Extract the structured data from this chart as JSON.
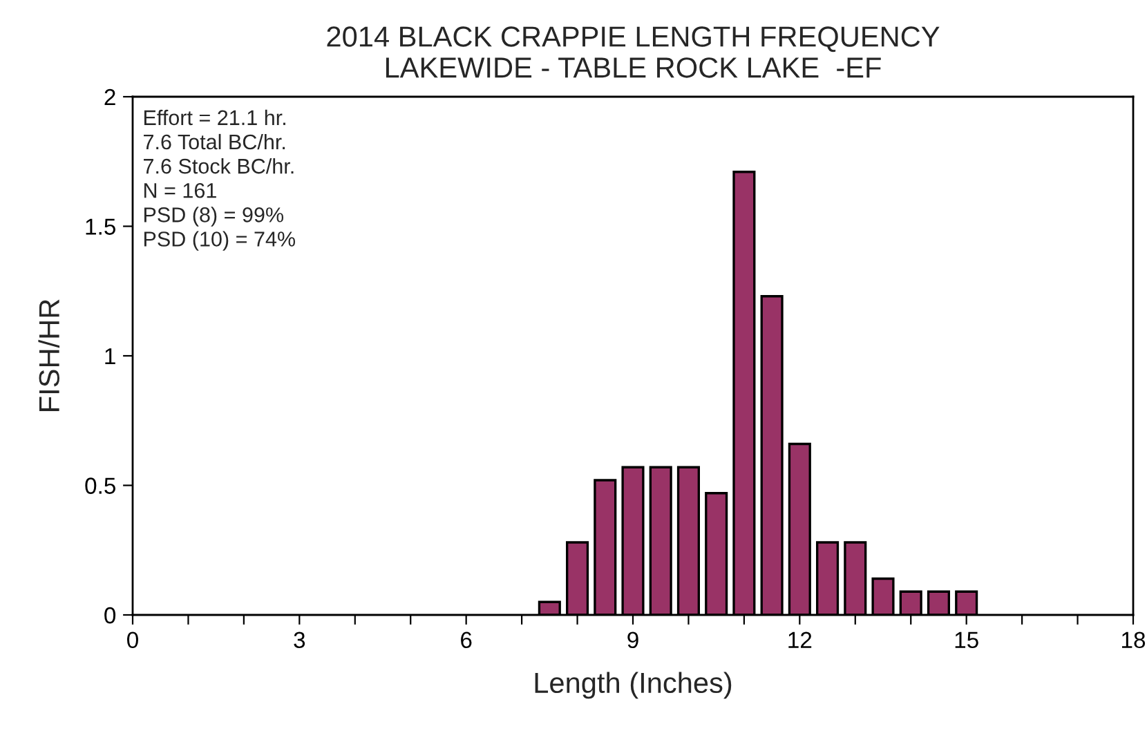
{
  "chart_data": {
    "type": "bar",
    "title": "2014 BLACK CRAPPIE LENGTH FREQUENCY\nLAKEWIDE - TABLE ROCK LAKE  -EF",
    "xlabel": "Length (Inches)",
    "ylabel": "FISH/HR",
    "x": [
      7.5,
      8,
      8.5,
      9,
      9.5,
      10,
      10.5,
      11,
      11.5,
      12,
      12.5,
      13,
      13.5,
      14,
      14.5,
      15
    ],
    "values": [
      0.05,
      0.28,
      0.52,
      0.57,
      0.57,
      0.57,
      0.47,
      1.71,
      1.23,
      0.66,
      0.28,
      0.28,
      0.14,
      0.09,
      0.09,
      0.09
    ],
    "color": "#993366",
    "xlim": [
      0,
      18
    ],
    "xticks": [
      0,
      {
        "value": 1,
        "label": null
      },
      {
        "value": 2,
        "label": null
      },
      3,
      {
        "value": 4,
        "label": null
      },
      {
        "value": 5,
        "label": null
      },
      6,
      {
        "value": 7,
        "label": null
      },
      {
        "value": 8,
        "label": null
      },
      9,
      {
        "value": 10,
        "label": null
      },
      {
        "value": 11,
        "label": null
      },
      12,
      {
        "value": 13,
        "label": null
      },
      {
        "value": 14,
        "label": null
      },
      15,
      {
        "value": 16,
        "label": null
      },
      {
        "value": 17,
        "label": null
      },
      18
    ],
    "ylim": [
      0,
      2
    ],
    "yticks": [
      0,
      0.5,
      1,
      1.5,
      2
    ],
    "annotations": [
      "Effort = 21.1 hr.\n7.6 Total BC/hr.\n7.6 Stock BC/hr.\nN = 161\nPSD (8) = 99%\nPSD (10) = 74%"
    ],
    "grid": false
  }
}
